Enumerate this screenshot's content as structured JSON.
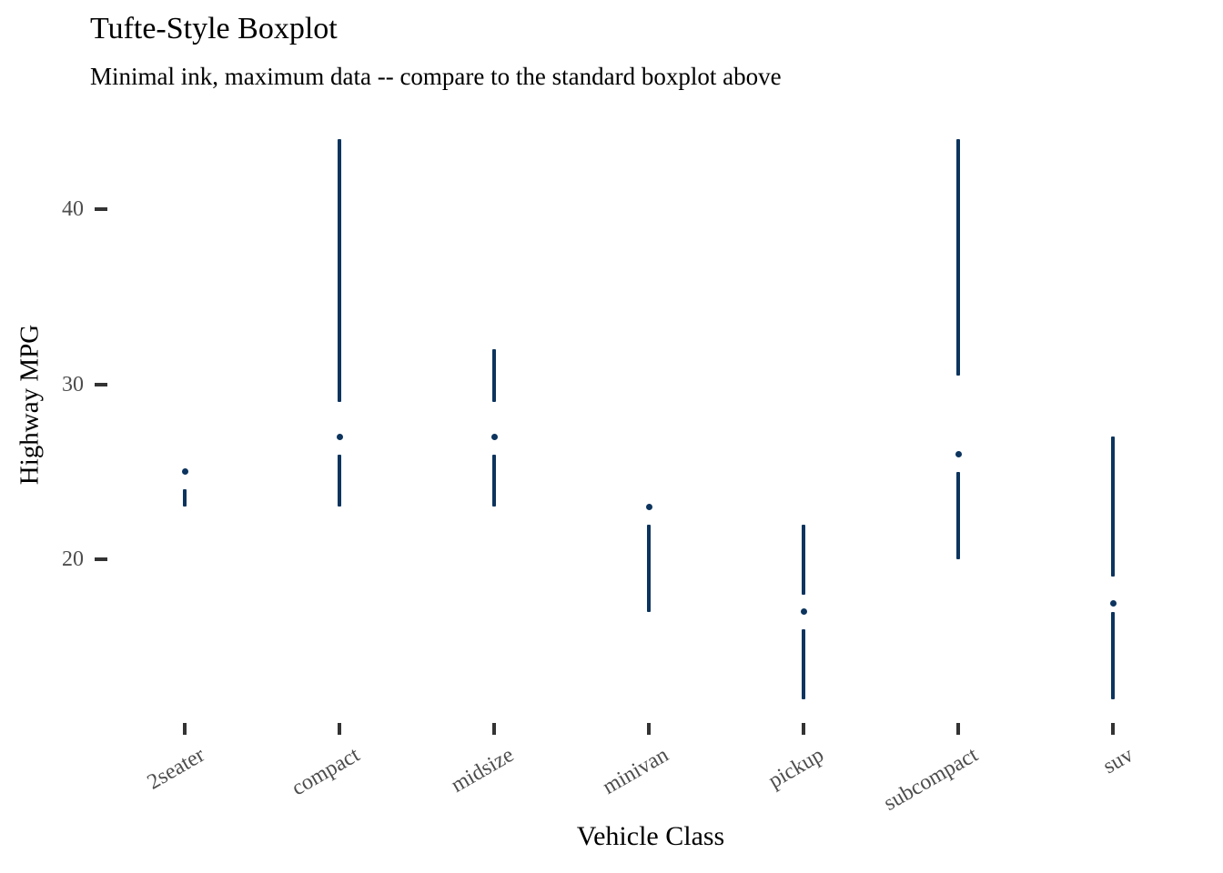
{
  "chart_data": {
    "type": "tufte-boxplot",
    "title": "Tufte-Style Boxplot",
    "subtitle": "Minimal ink, maximum data -- compare to the standard boxplot above",
    "xlabel": "Vehicle Class",
    "ylabel": "Highway MPG",
    "categories": [
      "2seater",
      "compact",
      "midsize",
      "minivan",
      "pickup",
      "subcompact",
      "suv"
    ],
    "series": [
      {
        "category": "2seater",
        "min": 23,
        "q1": 24,
        "median": 25,
        "q3": 26,
        "max": 26
      },
      {
        "category": "compact",
        "min": 23,
        "q1": 26,
        "median": 27,
        "q3": 29,
        "max": 44
      },
      {
        "category": "midsize",
        "min": 23,
        "q1": 26,
        "median": 27,
        "q3": 29,
        "max": 32
      },
      {
        "category": "minivan",
        "min": 17,
        "q1": 22,
        "median": 23,
        "q3": 24,
        "max": 24
      },
      {
        "category": "pickup",
        "min": 12,
        "q1": 16,
        "median": 17,
        "q3": 18,
        "max": 22
      },
      {
        "category": "subcompact",
        "min": 20,
        "q1": 25,
        "median": 26,
        "q3": 30.5,
        "max": 44
      },
      {
        "category": "suv",
        "min": 12,
        "q1": 17,
        "median": 17.5,
        "q3": 19,
        "max": 27
      }
    ],
    "yticks": [
      40,
      30,
      20
    ],
    "ylim": [
      11.5,
      45.5
    ],
    "grid": "off",
    "legend": "none",
    "marker_style": "dot-for-median, line-min-to-q1, line-q3-to-max, blank-for-box",
    "colors": {
      "data": "#0c345e",
      "tick_mark": "#333333",
      "tick_label": "#4d4d4d",
      "text": "#000000",
      "background": "#ffffff"
    }
  }
}
